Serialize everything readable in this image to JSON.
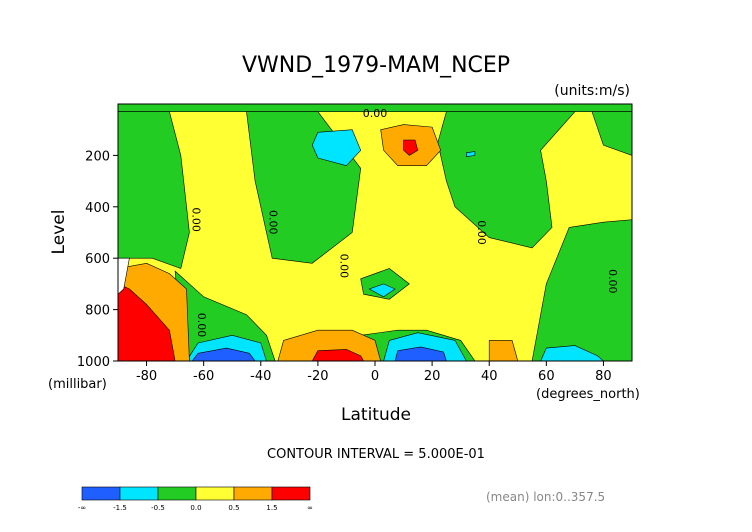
{
  "chart_data": {
    "type": "heatmap",
    "title": "VWND_1979-MAM_NCEP",
    "units_label": "(units:m/s)",
    "xlabel": "Latitude",
    "x_units_label": "(degrees_north)",
    "ylabel": "Level",
    "y_units_label": "(millibar)",
    "x_range": [
      -90,
      90
    ],
    "y_range": [
      0,
      1000
    ],
    "y_reversed": true,
    "x_ticks": [
      -80,
      -60,
      -40,
      -20,
      0,
      20,
      40,
      60,
      80
    ],
    "x_tick_labels": [
      "-80",
      "-60",
      "-40",
      "-20",
      "0",
      "20",
      "40",
      "60",
      "80"
    ],
    "y_ticks": [
      200,
      400,
      600,
      800,
      1000
    ],
    "y_tick_labels": [
      "200",
      "400",
      "600",
      "800",
      "1000"
    ],
    "contour_interval_text": "CONTOUR INTERVAL = 5.000E-01",
    "footer_text": "(mean) lon:0..357.5",
    "contour_labels": [
      {
        "lat": 0,
        "level": 50,
        "text": "0.00"
      },
      {
        "lat": -64,
        "level": 450,
        "text": "0.00"
      },
      {
        "lat": -37,
        "level": 460,
        "text": "0.00"
      },
      {
        "lat": -12,
        "level": 630,
        "text": "0.00"
      },
      {
        "lat": 36,
        "level": 500,
        "text": "0.00"
      },
      {
        "lat": 82,
        "level": 690,
        "text": "0.00"
      },
      {
        "lat": -62,
        "level": 860,
        "text": "0.00"
      }
    ],
    "legend": {
      "colors": [
        "#1f5fff",
        "#00e5ff",
        "#22cc22",
        "#ffff33",
        "#ffaa00",
        "#ff0000"
      ],
      "labels": [
        "-∞",
        "-1.5",
        "-0.5",
        "0.0",
        "0.5",
        "1.5",
        "∞"
      ]
    },
    "background_color": "#ffff33",
    "features": [
      {
        "kind": "fill",
        "color": "#22cc22",
        "points": [
          [
            -90,
            0
          ],
          [
            90,
            0
          ],
          [
            90,
            30
          ],
          [
            -90,
            30
          ]
        ]
      },
      {
        "kind": "fill",
        "color": "#22cc22",
        "points": [
          [
            -90,
            30
          ],
          [
            -72,
            30
          ],
          [
            -68,
            200
          ],
          [
            -65,
            500
          ],
          [
            -68,
            640
          ],
          [
            -78,
            600
          ],
          [
            -90,
            600
          ]
        ]
      },
      {
        "kind": "fill",
        "color": "#22cc22",
        "points": [
          [
            -45,
            30
          ],
          [
            -20,
            30
          ],
          [
            -5,
            250
          ],
          [
            -8,
            500
          ],
          [
            -22,
            620
          ],
          [
            -36,
            600
          ],
          [
            -42,
            300
          ]
        ]
      },
      {
        "kind": "fill",
        "color": "#22cc22",
        "points": [
          [
            -70,
            650
          ],
          [
            -60,
            750
          ],
          [
            -45,
            820
          ],
          [
            -38,
            900
          ],
          [
            -35,
            1000
          ],
          [
            -72,
            1000
          ],
          [
            -68,
            880
          ]
        ]
      },
      {
        "kind": "fill",
        "color": "#22cc22",
        "points": [
          [
            -5,
            680
          ],
          [
            5,
            640
          ],
          [
            12,
            700
          ],
          [
            5,
            760
          ],
          [
            -4,
            740
          ]
        ]
      },
      {
        "kind": "fill",
        "color": "#22cc22",
        "points": [
          [
            25,
            30
          ],
          [
            70,
            30
          ],
          [
            58,
            180
          ],
          [
            60,
            300
          ],
          [
            62,
            480
          ],
          [
            55,
            560
          ],
          [
            40,
            520
          ],
          [
            28,
            400
          ],
          [
            25,
            300
          ],
          [
            22,
            150
          ]
        ]
      },
      {
        "kind": "fill",
        "color": "#22cc22",
        "points": [
          [
            76,
            30
          ],
          [
            90,
            30
          ],
          [
            90,
            200
          ],
          [
            80,
            160
          ]
        ]
      },
      {
        "kind": "fill",
        "color": "#22cc22",
        "points": [
          [
            68,
            480
          ],
          [
            80,
            460
          ],
          [
            90,
            450
          ],
          [
            90,
            1000
          ],
          [
            55,
            1000
          ],
          [
            60,
            700
          ]
        ]
      },
      {
        "kind": "fill",
        "color": "#22cc22",
        "points": [
          [
            -5,
            900
          ],
          [
            8,
            880
          ],
          [
            18,
            880
          ],
          [
            30,
            920
          ],
          [
            35,
            1000
          ],
          [
            -8,
            1000
          ]
        ]
      },
      {
        "kind": "fill",
        "color": "#00e5ff",
        "points": [
          [
            -20,
            110
          ],
          [
            -8,
            100
          ],
          [
            -5,
            180
          ],
          [
            -10,
            240
          ],
          [
            -20,
            210
          ],
          [
            -22,
            160
          ]
        ]
      },
      {
        "kind": "fill",
        "color": "#00e5ff",
        "points": [
          [
            -2,
            720
          ],
          [
            3,
            700
          ],
          [
            7,
            720
          ],
          [
            3,
            750
          ]
        ]
      },
      {
        "kind": "fill",
        "color": "#00e5ff",
        "points": [
          [
            32,
            190
          ],
          [
            35,
            185
          ],
          [
            35,
            200
          ],
          [
            32,
            205
          ]
        ]
      },
      {
        "kind": "fill",
        "color": "#00e5ff",
        "points": [
          [
            -62,
            930
          ],
          [
            -50,
            900
          ],
          [
            -40,
            930
          ],
          [
            -38,
            1000
          ],
          [
            -66,
            1000
          ]
        ]
      },
      {
        "kind": "fill",
        "color": "#00e5ff",
        "points": [
          [
            5,
            920
          ],
          [
            15,
            890
          ],
          [
            28,
            920
          ],
          [
            32,
            1000
          ],
          [
            3,
            1000
          ]
        ]
      },
      {
        "kind": "fill",
        "color": "#00e5ff",
        "points": [
          [
            60,
            950
          ],
          [
            70,
            940
          ],
          [
            78,
            980
          ],
          [
            80,
            1000
          ],
          [
            58,
            1000
          ]
        ]
      },
      {
        "kind": "fill",
        "color": "#1f5fff",
        "points": [
          [
            -62,
            970
          ],
          [
            -52,
            950
          ],
          [
            -44,
            970
          ],
          [
            -42,
            1000
          ],
          [
            -64,
            1000
          ]
        ]
      },
      {
        "kind": "fill",
        "color": "#1f5fff",
        "points": [
          [
            8,
            960
          ],
          [
            16,
            945
          ],
          [
            24,
            965
          ],
          [
            25,
            1000
          ],
          [
            7,
            1000
          ]
        ]
      },
      {
        "kind": "fill",
        "color": "#ffaa00",
        "points": [
          [
            2,
            100
          ],
          [
            10,
            80
          ],
          [
            20,
            90
          ],
          [
            23,
            180
          ],
          [
            18,
            240
          ],
          [
            8,
            240
          ],
          [
            3,
            180
          ]
        ]
      },
      {
        "kind": "fill",
        "color": "#ffaa00",
        "points": [
          [
            -90,
            640
          ],
          [
            -80,
            620
          ],
          [
            -72,
            660
          ],
          [
            -66,
            720
          ],
          [
            -65,
            1000
          ],
          [
            -90,
            1000
          ]
        ]
      },
      {
        "kind": "fill",
        "color": "#ffaa00",
        "points": [
          [
            -32,
            920
          ],
          [
            -20,
            880
          ],
          [
            -8,
            880
          ],
          [
            0,
            920
          ],
          [
            2,
            1000
          ],
          [
            -34,
            1000
          ]
        ]
      },
      {
        "kind": "fill",
        "color": "#ffaa00",
        "points": [
          [
            40,
            920
          ],
          [
            48,
            920
          ],
          [
            50,
            1000
          ],
          [
            40,
            1000
          ]
        ]
      },
      {
        "kind": "fill",
        "color": "#ff0000",
        "points": [
          [
            10,
            140
          ],
          [
            14,
            140
          ],
          [
            15,
            180
          ],
          [
            12,
            200
          ],
          [
            10,
            180
          ]
        ]
      },
      {
        "kind": "fill",
        "color": "#ff0000",
        "points": [
          [
            -86,
            720
          ],
          [
            -80,
            780
          ],
          [
            -72,
            880
          ],
          [
            -70,
            1000
          ],
          [
            -90,
            1000
          ],
          [
            -90,
            700
          ]
        ]
      },
      {
        "kind": "fill",
        "color": "#ff0000",
        "points": [
          [
            -20,
            960
          ],
          [
            -10,
            955
          ],
          [
            -5,
            980
          ],
          [
            -4,
            1000
          ],
          [
            -22,
            1000
          ]
        ]
      },
      {
        "kind": "fill",
        "color": "#ffffff",
        "points": [
          [
            -90,
            600
          ],
          [
            -86,
            600
          ],
          [
            -88,
            720
          ],
          [
            -90,
            740
          ]
        ]
      }
    ]
  }
}
